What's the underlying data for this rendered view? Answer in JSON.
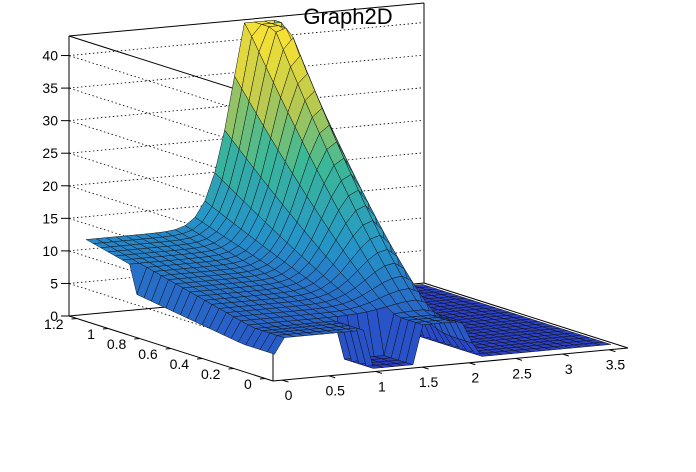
{
  "chart_data": {
    "type": "surface",
    "title": "Graph2D",
    "xlabel": "",
    "ylabel": "",
    "zlabel": "",
    "xlim": [
      -0.1,
      3.7
    ],
    "ylim": [
      -0.05,
      1.25
    ],
    "zlim": [
      0,
      43
    ],
    "x_ticks": [
      {
        "value": 0,
        "label": "0"
      },
      {
        "value": 0.5,
        "label": "0.5"
      },
      {
        "value": 1,
        "label": "1"
      },
      {
        "value": 1.5,
        "label": "1.5"
      },
      {
        "value": 2,
        "label": "2"
      },
      {
        "value": 2.5,
        "label": "2.5"
      },
      {
        "value": 3,
        "label": "3"
      },
      {
        "value": 3.5,
        "label": "3.5"
      }
    ],
    "y_ticks": [
      {
        "value": 0,
        "label": "0"
      },
      {
        "value": 0.2,
        "label": "0.2"
      },
      {
        "value": 0.4,
        "label": "0.4"
      },
      {
        "value": 0.6,
        "label": "0.6"
      },
      {
        "value": 0.8,
        "label": "0.8"
      },
      {
        "value": 1,
        "label": "1"
      },
      {
        "value": 1.2,
        "label": "1.2"
      }
    ],
    "z_ticks": [
      {
        "value": 0,
        "label": "0"
      },
      {
        "value": 5,
        "label": "5"
      },
      {
        "value": 10,
        "label": "10"
      },
      {
        "value": 15,
        "label": "15"
      },
      {
        "value": 20,
        "label": "20"
      },
      {
        "value": 25,
        "label": "25"
      },
      {
        "value": 30,
        "label": "30"
      },
      {
        "value": 35,
        "label": "35"
      },
      {
        "value": 40,
        "label": "40"
      }
    ],
    "grid": true,
    "colormap": "viridis-like (blue to yellow)",
    "surface_peak": {
      "x": 1.9,
      "y": 1.0,
      "z": 41
    }
  }
}
